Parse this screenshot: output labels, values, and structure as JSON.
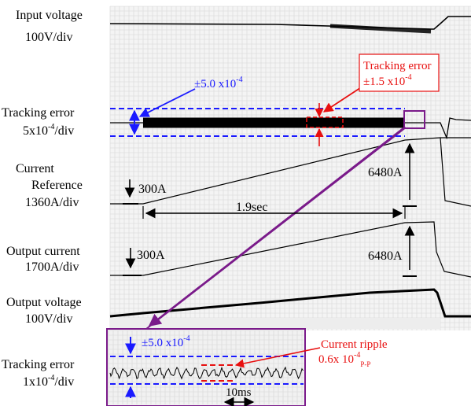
{
  "labels": {
    "input_voltage": [
      "Input voltage",
      "100V/div"
    ],
    "tracking_error": [
      "Tracking error",
      "5x10",
      "-4",
      "/div"
    ],
    "current_reference": [
      "Current",
      "Reference",
      "1360A/div"
    ],
    "output_current": [
      "Output current",
      "1700A/div"
    ],
    "output_voltage": [
      "Output voltage",
      "100V/div"
    ],
    "tracking_error_zoom": [
      "Tracking error",
      "1x10",
      "-4",
      "/div"
    ]
  },
  "annotations": {
    "pm5_main": {
      "prefix": "±5.0 x10",
      "exp": "-4"
    },
    "tracking_box": {
      "line1": "Tracking error",
      "line2_prefix": "±1.5 x10",
      "exp": "-4"
    },
    "ref_300": "300A",
    "ref_6480": "6480A",
    "duration": "1.9sec",
    "out_300": "300A",
    "out_6480": "6480A",
    "pm5_zoom": {
      "prefix": "±5.0 x10",
      "exp": "-4"
    },
    "ripple": {
      "line1": "Current ripple",
      "line2_prefix": "0.6x 10",
      "exp": "-4",
      "sub": "P-P"
    },
    "time_scale": "10ms"
  },
  "colors": {
    "blue": "#1a1aff",
    "red": "#e81010",
    "purple": "#7a1a8a",
    "trace": "#000000",
    "grid": "#cfcfcf"
  },
  "chart_data": {
    "type": "line",
    "title": "",
    "traces": [
      {
        "name": "Input voltage",
        "scale": "100V/div",
        "shape": "flat, dropping at end of ramp"
      },
      {
        "name": "Tracking error",
        "scale": "5x10^-4/div",
        "band": "±5.0 x10^-4",
        "observed": "±1.5 x10^-4"
      },
      {
        "name": "Current Reference",
        "scale": "1360A/div",
        "start_A": 300,
        "end_A": 6480,
        "ramp_time_s": 1.9
      },
      {
        "name": "Output current",
        "scale": "1700A/div",
        "start_A": 300,
        "end_A": 6480
      },
      {
        "name": "Output voltage",
        "scale": "100V/div",
        "shape": "rising with current"
      },
      {
        "name": "Tracking error (zoom)",
        "scale": "1x10^-4/div",
        "band": "±5.0 x10^-4",
        "ripple_pp": "0.6x 10^-4",
        "time_div": "10ms"
      }
    ]
  }
}
